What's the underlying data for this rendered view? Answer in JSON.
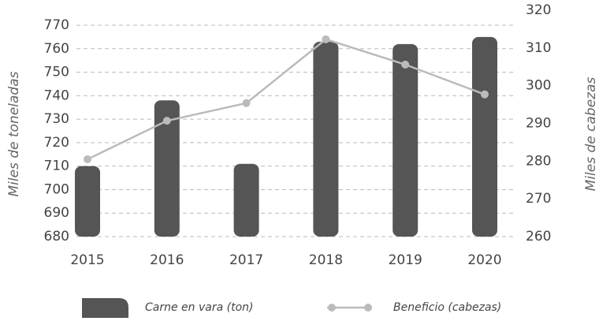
{
  "chart_data": {
    "type": "bar",
    "categories": [
      "2015",
      "2016",
      "2017",
      "2018",
      "2019",
      "2020"
    ],
    "series": [
      {
        "name": "Carne en vara (ton)",
        "type": "bar",
        "color": "#555555",
        "values": [
          710,
          738,
          711,
          763,
          762,
          765
        ]
      },
      {
        "name": "Beneficio (cabezas)",
        "type": "line",
        "axis": "y2",
        "color": "#bbbbbb",
        "values": [
          280.5,
          290.7,
          295.4,
          312.3,
          305.6,
          297.7
        ]
      }
    ],
    "ylabel": "Miles de toneladas",
    "y2label": "Miles de cabezas",
    "ylim": [
      680,
      770
    ],
    "yticks": [
      680,
      690,
      700,
      710,
      720,
      730,
      740,
      750,
      760,
      770
    ],
    "y2lim": [
      260,
      320
    ],
    "y2ticks": [
      260,
      270,
      280,
      290,
      300,
      310,
      320
    ],
    "grid": true,
    "legend": "bottom"
  }
}
